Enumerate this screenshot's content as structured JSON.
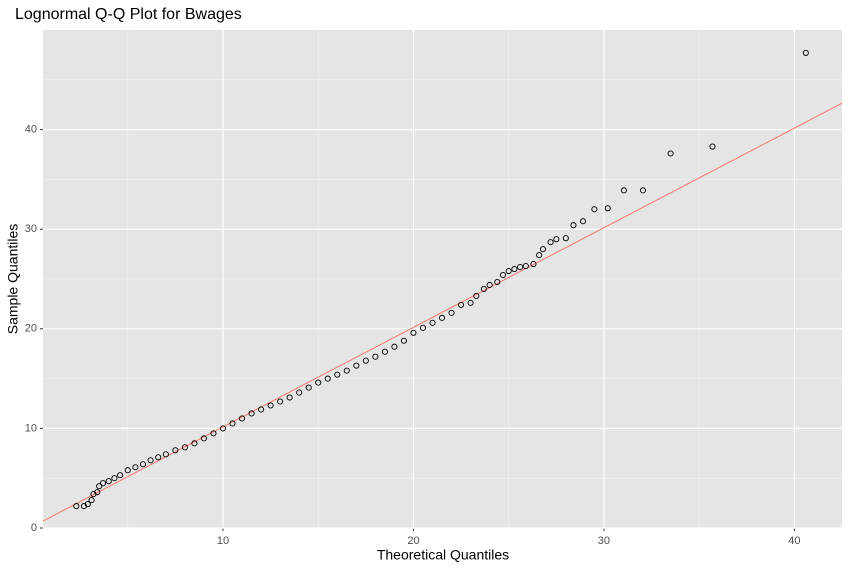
{
  "chart_data": {
    "type": "scatter",
    "title": "Lognormal Q-Q Plot for Bwages",
    "x_label": "Theoretical Quantiles",
    "y_label": "Sample Quantiles",
    "xlim": [
      0.55,
      42.5
    ],
    "ylim": [
      0,
      50
    ],
    "xticks": [
      10,
      20,
      30,
      40
    ],
    "yticks": [
      0,
      10,
      20,
      30,
      40
    ],
    "x_minor_grid": [
      5,
      15,
      25,
      35
    ],
    "y_minor_grid": [
      5,
      15,
      25,
      35,
      45
    ],
    "grid": true,
    "point_color": "#000000",
    "reference_line": {
      "intercept": 0.15,
      "slope": 1.0,
      "color": "#f8766d"
    },
    "series": [
      {
        "name": "Bwages",
        "color": "#000000",
        "x": [
          2.3,
          2.7,
          2.9,
          3.1,
          3.2,
          3.4,
          3.5,
          3.7,
          4.0,
          4.3,
          4.6,
          5.0,
          5.4,
          5.8,
          6.2,
          6.6,
          7.0,
          7.5,
          8.0,
          8.5,
          9.0,
          9.5,
          10.0,
          10.5,
          11.0,
          11.5,
          12.0,
          12.5,
          13.0,
          13.5,
          14.0,
          14.5,
          15.0,
          15.5,
          16.0,
          16.5,
          17.0,
          17.5,
          18.0,
          18.5,
          19.0,
          19.5,
          20.0,
          20.5,
          21.0,
          21.5,
          22.0,
          22.5,
          23.0,
          23.3,
          23.7,
          24.0,
          24.4,
          24.7,
          25.0,
          25.3,
          25.6,
          25.9,
          26.3,
          26.6,
          26.8,
          27.2,
          27.5,
          28.0,
          28.4,
          28.9,
          29.5,
          30.2,
          31.05,
          32.05,
          33.5,
          35.7,
          40.6
        ],
        "values": [
          2.2,
          2.2,
          2.4,
          2.8,
          3.4,
          3.6,
          4.2,
          4.5,
          4.7,
          5.0,
          5.3,
          5.8,
          6.1,
          6.4,
          6.8,
          7.1,
          7.4,
          7.8,
          8.1,
          8.5,
          9.0,
          9.5,
          10.0,
          10.5,
          11.0,
          11.5,
          11.9,
          12.3,
          12.7,
          13.1,
          13.6,
          14.1,
          14.6,
          15.0,
          15.4,
          15.8,
          16.3,
          16.8,
          17.2,
          17.7,
          18.2,
          18.8,
          19.6,
          20.1,
          20.6,
          21.1,
          21.6,
          22.4,
          22.6,
          23.3,
          24.0,
          24.4,
          24.7,
          25.4,
          25.8,
          26.0,
          26.2,
          26.3,
          26.5,
          27.4,
          28.0,
          28.7,
          29.0,
          29.1,
          30.4,
          30.8,
          32.0,
          32.1,
          33.9,
          33.9,
          37.6,
          38.3,
          47.7
        ]
      }
    ]
  }
}
